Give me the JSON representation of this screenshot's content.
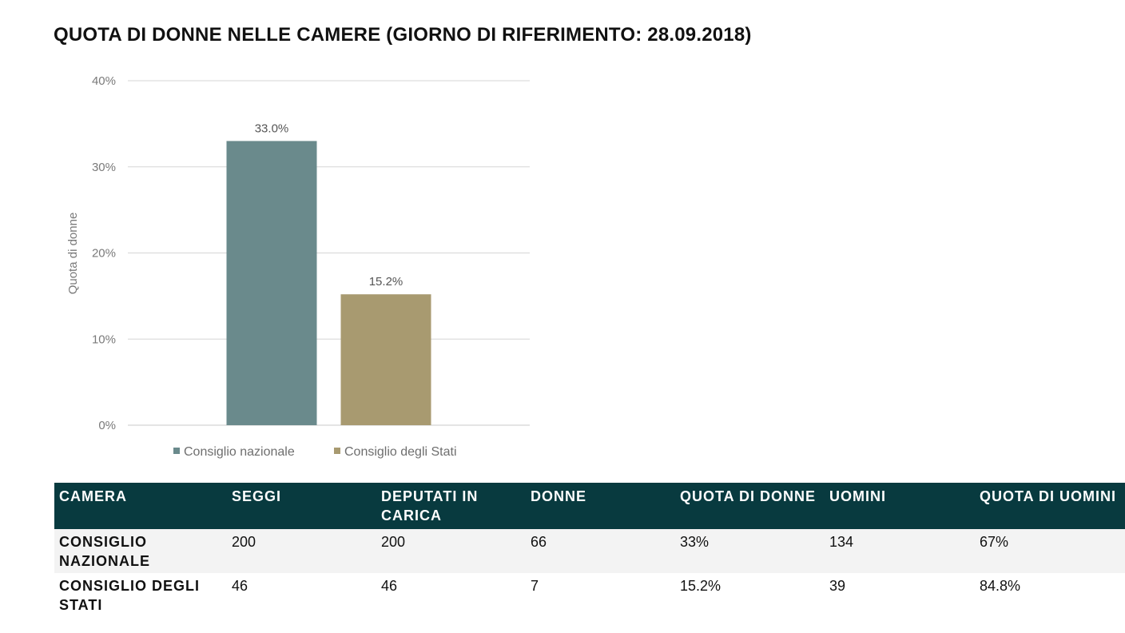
{
  "title": "QUOTA DI DONNE NELLE CAMERE (GIORNO DI RIFERIMENTO: 28.09.2018)",
  "chart_data": {
    "type": "bar",
    "categories": [
      "Consiglio nazionale",
      "Consiglio degli Stati"
    ],
    "values": [
      33.0,
      15.2
    ],
    "value_labels": [
      "33.0%",
      "15.2%"
    ],
    "colors": [
      "#6a8a8c",
      "#a89a70"
    ],
    "ylabel": "Quota di donne",
    "ylim": [
      0,
      40
    ],
    "yticks": [
      0,
      10,
      20,
      30,
      40
    ],
    "ytick_labels": [
      "0%",
      "10%",
      "20%",
      "30%",
      "40%"
    ],
    "grid": true,
    "legend": {
      "position": "bottom",
      "entries": [
        "Consiglio nazionale",
        "Consiglio degli Stati"
      ]
    }
  },
  "table": {
    "headers": [
      "CAMERA",
      "SEGGI",
      "DEPUTATI IN CARICA",
      "DONNE",
      "QUOTA DI DONNE",
      "UOMINI",
      "QUOTA DI UOMINI"
    ],
    "rows": [
      [
        "CONSIGLIO NAZIONALE",
        "200",
        "200",
        "66",
        "33%",
        "134",
        "67%"
      ],
      [
        "CONSIGLIO DEGLI STATI",
        "46",
        "46",
        "7",
        "15.2%",
        "39",
        "84.8%"
      ]
    ],
    "header_bg": "#083a3f"
  }
}
